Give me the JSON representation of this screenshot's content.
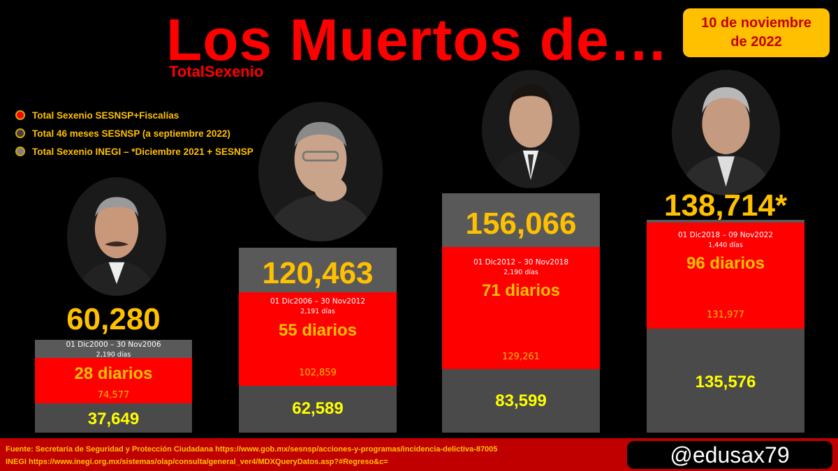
{
  "header": {
    "title": "Los Muertos de…",
    "subtitle": "TotalSexenio",
    "date": [
      "10 de noviembre",
      "de 2022"
    ]
  },
  "legend": [
    {
      "label": "Total Sexenio SESNSP+Fiscalías",
      "color": "#ff0000"
    },
    {
      "label": "Total 46 meses SESNSP (a septiembre 2022)",
      "color": "#404040"
    },
    {
      "label": "Total Sexenio INEGI – *Diciembre 2021 + SESNSP",
      "color": "#808080"
    }
  ],
  "chart_data": {
    "type": "bar",
    "categories": [
      "01 Dic2000 – 30 Nov2006",
      "01 Dic2006 – 30 Nov2012",
      "01 Dic2012 – 30 Nov2018",
      "01 Dic2018 – 09 Nov2022"
    ],
    "totals": [
      "60,280",
      "120,463",
      "156,066",
      "138,714*"
    ],
    "total_values": [
      60280,
      120463,
      156066,
      138714
    ],
    "days": [
      "2,190 días",
      "2,191 días",
      "2,190 días",
      "1,440 días"
    ],
    "daily": [
      "28 diarios",
      "55 diarios",
      "71 diarios",
      "96 diarios"
    ],
    "series": [
      {
        "name": "Total Sexenio SESNSP+Fiscalías",
        "values": [
          74577,
          102859,
          129261,
          131977
        ],
        "labels": [
          "74,577",
          "102,859",
          "129,261",
          "131,977"
        ]
      },
      {
        "name": "Total Sexenio INEGI – *Diciembre 2021 + SESNSP",
        "values": [
          37649,
          62589,
          83599,
          135576
        ],
        "labels": [
          "37,649",
          "62,589",
          "83,599",
          "135,576"
        ]
      }
    ],
    "colors": {
      "total": "#595959",
      "sesnsp": "#ff0000",
      "inegi": "#4a4a4a"
    }
  },
  "portraits": [
    {
      "icon": "portrait-fox-icon"
    },
    {
      "icon": "portrait-calderon-icon"
    },
    {
      "icon": "portrait-pena-icon"
    },
    {
      "icon": "portrait-amlo-icon"
    }
  ],
  "footer": {
    "source1": "Fuente: Secretaría de Seguridad y Protección Ciudadana https://www.gob.mx/sesnsp/acciones-y-programas/incidencia-delictiva-87005",
    "source2": "INEGI https://www.inegi.org.mx/sistemas/olap/consulta/general_ver4/MDXQueryDatos.asp?#Regreso&c=",
    "handle": "@edusax79"
  }
}
